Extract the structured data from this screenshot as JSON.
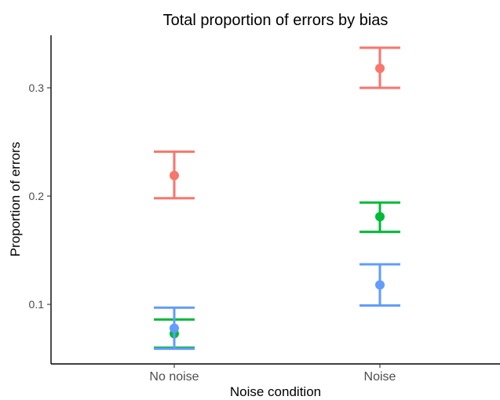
{
  "chart_data": {
    "type": "scatter",
    "title": "Total proportion of errors by bias",
    "xlabel": "Noise condition",
    "ylabel": "Proportion of errors",
    "categories": [
      "No noise",
      "Noise"
    ],
    "ylim": [
      0.045,
      0.3485
    ],
    "yticks": [
      0.1,
      0.2,
      0.3
    ],
    "ytick_labels": [
      "0.1",
      "0.2",
      "0.3"
    ],
    "grid": false,
    "legend": "none",
    "series": [
      {
        "color": "#F8766D",
        "values": [
          0.219,
          0.318
        ],
        "lower": [
          0.198,
          0.3
        ],
        "upper": [
          0.241,
          0.337
        ]
      },
      {
        "color": "#00BA38",
        "values": [
          0.073,
          0.181
        ],
        "lower": [
          0.06,
          0.167
        ],
        "upper": [
          0.086,
          0.194
        ]
      },
      {
        "color": "#619CFF",
        "values": [
          0.078,
          0.118
        ],
        "lower": [
          0.059,
          0.099
        ],
        "upper": [
          0.097,
          0.137
        ]
      }
    ]
  }
}
